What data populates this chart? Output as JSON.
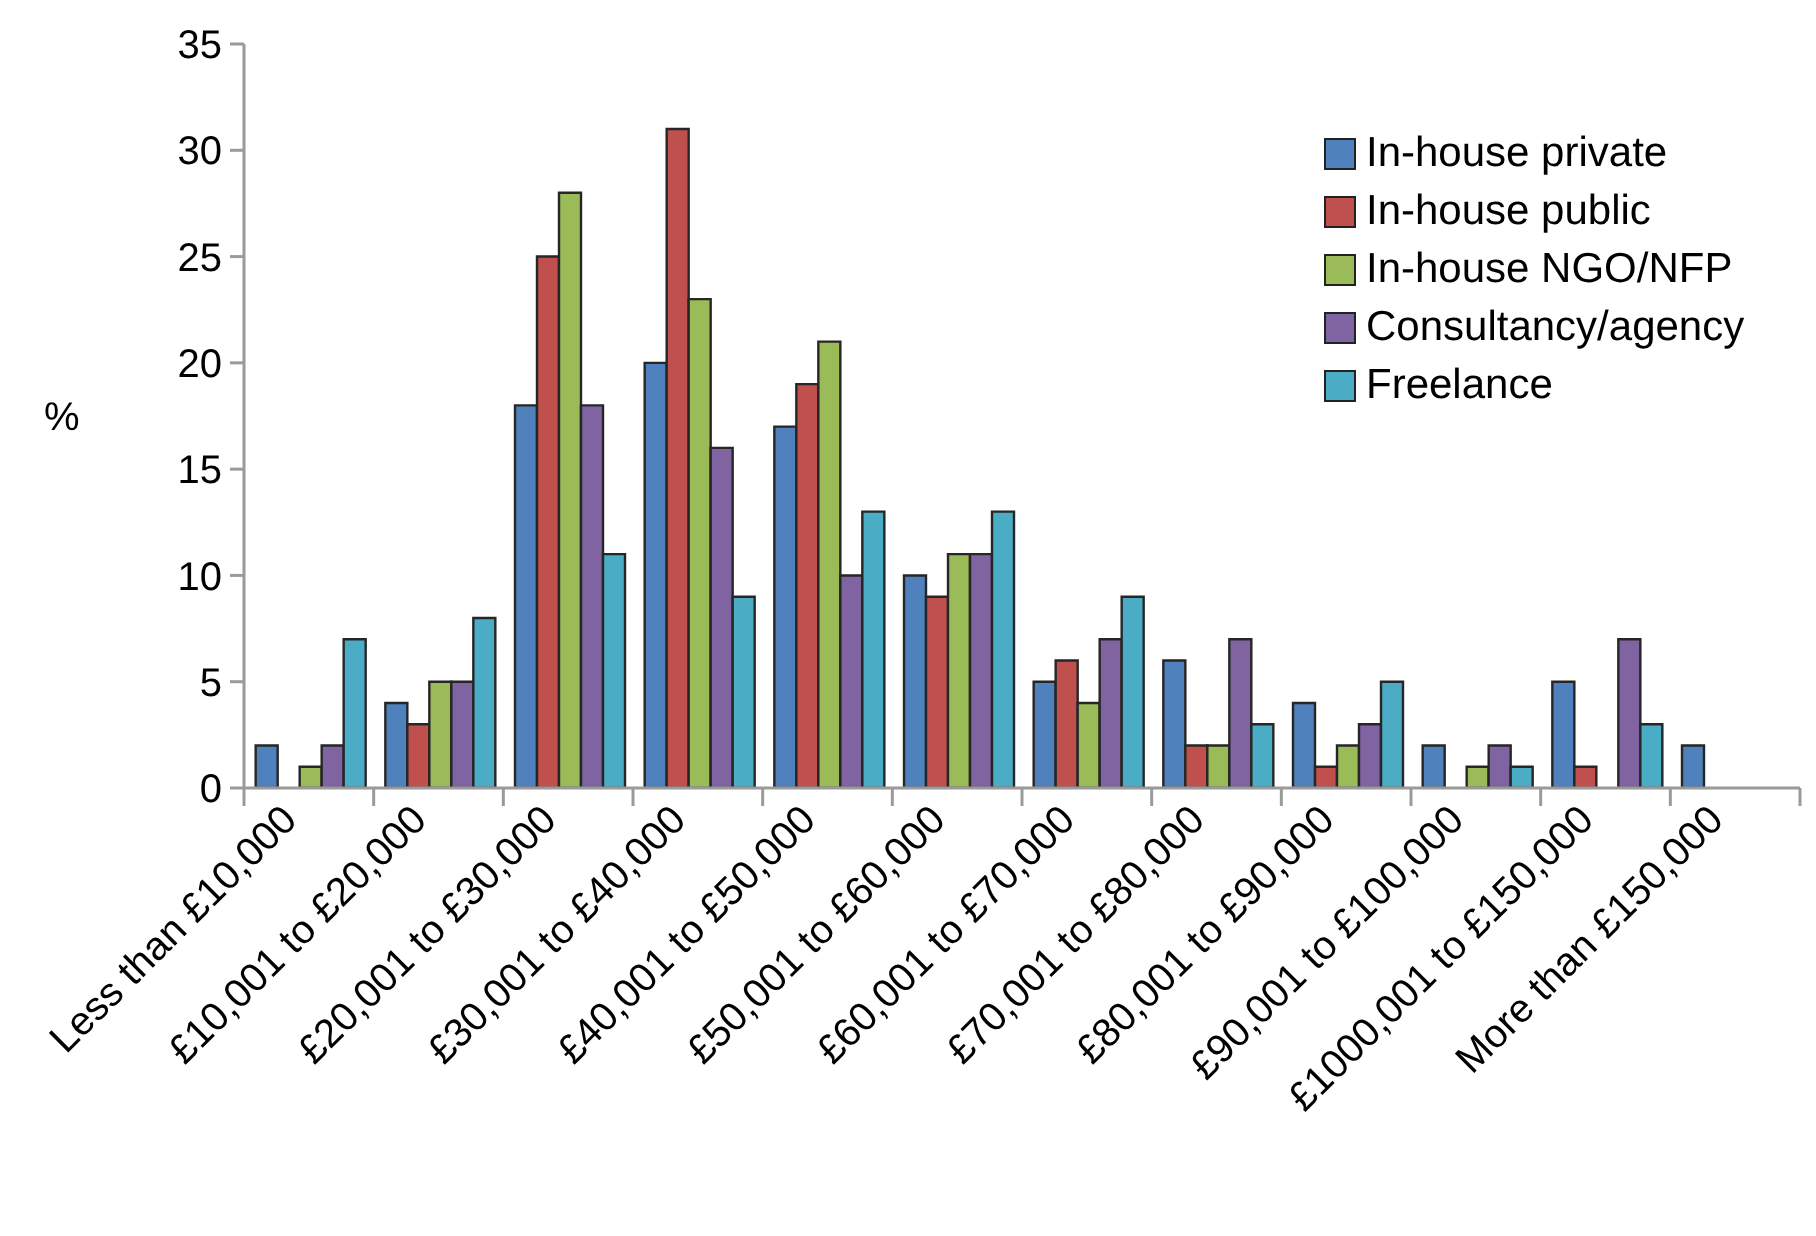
{
  "chart_data": {
    "type": "bar",
    "ylabel": "%",
    "categories": [
      "Less than £10,000",
      "£10,001 to £20,000",
      "£20,001 to £30,000",
      "£30,001 to £40,000",
      "£40,001 to £50,000",
      "£50,001 to £60,000",
      "£60,001 to £70,000",
      "£70,001 to £80,000",
      "£80,001 to £90,000",
      "£90,001 to £100,000",
      "£1000,001 to £150,000",
      "More than £150,000"
    ],
    "series": [
      {
        "name": "In-house private",
        "color": "#4f81bd",
        "values": [
          2,
          4,
          18,
          20,
          17,
          10,
          5,
          6,
          4,
          2,
          5,
          2
        ]
      },
      {
        "name": "In-house public",
        "color": "#c0504d",
        "values": [
          0,
          3,
          25,
          31,
          19,
          9,
          6,
          2,
          1,
          0,
          1,
          0
        ]
      },
      {
        "name": "In-house NGO/NFP",
        "color": "#9bbb59",
        "values": [
          1,
          5,
          28,
          23,
          21,
          11,
          4,
          2,
          2,
          1,
          0,
          0
        ]
      },
      {
        "name": "Consultancy/agency",
        "color": "#8064a2",
        "values": [
          2,
          5,
          18,
          16,
          10,
          11,
          7,
          7,
          3,
          2,
          7,
          0
        ]
      },
      {
        "name": "Freelance",
        "color": "#4bacc6",
        "values": [
          7,
          8,
          11,
          9,
          13,
          13,
          9,
          3,
          5,
          1,
          3,
          0
        ]
      }
    ],
    "ylim": [
      0,
      35
    ],
    "yticks": [
      0,
      5,
      10,
      15,
      20,
      25,
      30,
      35
    ],
    "legend": "top right"
  }
}
